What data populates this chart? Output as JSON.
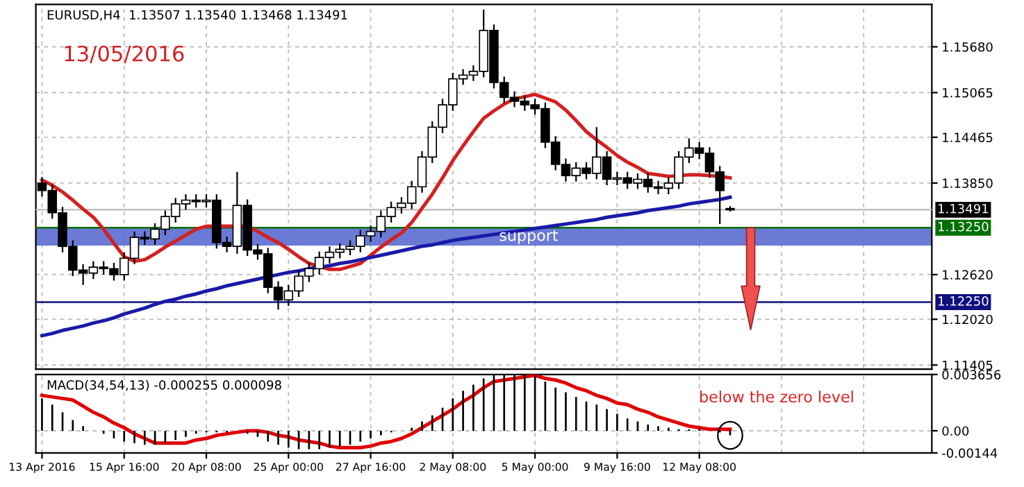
{
  "chart_data": [
    {
      "type": "candlestick",
      "title": "EURUSD,H4  1.13507 1.13540 1.13468 1.13491",
      "categories": [
        null,
        null,
        null,
        null,
        null,
        null,
        null,
        null,
        null,
        null,
        null,
        null,
        null,
        null,
        null,
        null,
        null,
        null,
        null,
        null,
        null,
        null,
        null,
        null,
        null,
        null,
        null,
        null,
        null,
        null,
        null,
        null,
        null,
        null,
        null,
        null,
        null,
        null,
        null,
        null,
        null,
        null,
        null,
        null,
        null,
        null,
        null,
        null,
        null,
        null,
        null,
        null,
        null,
        null,
        null,
        null,
        null,
        null,
        null,
        null,
        null,
        null,
        null,
        null,
        null,
        null,
        null,
        null
      ],
      "ohlc": [
        [
          1.1385,
          1.1393,
          1.1367,
          1.1375
        ],
        [
          1.1375,
          1.1383,
          1.1337,
          1.1345
        ],
        [
          1.1345,
          1.1353,
          1.1292,
          1.13
        ],
        [
          1.13,
          1.1308,
          1.126,
          1.1268
        ],
        [
          1.1268,
          1.1276,
          1.1248,
          1.1264
        ],
        [
          1.1264,
          1.128,
          1.1256,
          1.1272
        ],
        [
          1.1272,
          1.128,
          1.1262,
          1.127
        ],
        [
          1.127,
          1.1278,
          1.1254,
          1.1262
        ],
        [
          1.1262,
          1.1292,
          1.1254,
          1.1284
        ],
        [
          1.1284,
          1.132,
          1.1276,
          1.1312
        ],
        [
          1.1312,
          1.132,
          1.1302,
          1.131
        ],
        [
          1.131,
          1.1331,
          1.1302,
          1.1323
        ],
        [
          1.1323,
          1.1348,
          1.1315,
          1.134
        ],
        [
          1.134,
          1.1365,
          1.1332,
          1.1357
        ],
        [
          1.1357,
          1.137,
          1.1349,
          1.1362
        ],
        [
          1.1362,
          1.137,
          1.1352,
          1.136
        ],
        [
          1.136,
          1.137,
          1.1352,
          1.1362
        ],
        [
          1.1362,
          1.137,
          1.1297,
          1.1305
        ],
        [
          1.1305,
          1.1313,
          1.1292,
          1.13
        ],
        [
          1.13,
          1.14,
          1.129,
          1.1355
        ],
        [
          1.1355,
          1.1363,
          1.1287,
          1.1295
        ],
        [
          1.1295,
          1.1303,
          1.1282,
          1.129
        ],
        [
          1.129,
          1.1298,
          1.1237,
          1.1245
        ],
        [
          1.1245,
          1.1253,
          1.1215,
          1.1228
        ],
        [
          1.1228,
          1.1248,
          1.122,
          1.124
        ],
        [
          1.124,
          1.1268,
          1.1232,
          1.126
        ],
        [
          1.126,
          1.1278,
          1.1252,
          1.127
        ],
        [
          1.127,
          1.1293,
          1.1262,
          1.1285
        ],
        [
          1.1285,
          1.13,
          1.1277,
          1.1292
        ],
        [
          1.1292,
          1.1304,
          1.1284,
          1.1296
        ],
        [
          1.1296,
          1.1308,
          1.1288,
          1.13
        ],
        [
          1.13,
          1.1322,
          1.1292,
          1.1314
        ],
        [
          1.1314,
          1.1328,
          1.1306,
          1.132
        ],
        [
          1.132,
          1.1348,
          1.1312,
          1.134
        ],
        [
          1.134,
          1.136,
          1.1332,
          1.1352
        ],
        [
          1.1352,
          1.1366,
          1.1344,
          1.1358
        ],
        [
          1.1358,
          1.1388,
          1.135,
          1.138
        ],
        [
          1.138,
          1.1428,
          1.1372,
          1.142
        ],
        [
          1.142,
          1.1468,
          1.1412,
          1.146
        ],
        [
          1.146,
          1.1498,
          1.1452,
          1.149
        ],
        [
          1.149,
          1.1533,
          1.1482,
          1.1525
        ],
        [
          1.1525,
          1.1538,
          1.1517,
          1.153
        ],
        [
          1.153,
          1.1543,
          1.1522,
          1.1535
        ],
        [
          1.1535,
          1.1618,
          1.1527,
          1.159
        ],
        [
          1.159,
          1.1598,
          1.1512,
          1.152
        ],
        [
          1.152,
          1.1528,
          1.1492,
          1.15
        ],
        [
          1.15,
          1.1508,
          1.1487,
          1.1495
        ],
        [
          1.1495,
          1.1503,
          1.1482,
          1.149
        ],
        [
          1.149,
          1.1498,
          1.1477,
          1.1485
        ],
        [
          1.1485,
          1.1493,
          1.1432,
          1.144
        ],
        [
          1.144,
          1.1448,
          1.1402,
          1.141
        ],
        [
          1.141,
          1.1418,
          1.1387,
          1.1395
        ],
        [
          1.1395,
          1.1413,
          1.1387,
          1.1405
        ],
        [
          1.1405,
          1.1413,
          1.139,
          1.1398
        ],
        [
          1.1398,
          1.146,
          1.139,
          1.142
        ],
        [
          1.142,
          1.1428,
          1.1382,
          1.139
        ],
        [
          1.139,
          1.14,
          1.1382,
          1.1392
        ],
        [
          1.1392,
          1.14,
          1.1377,
          1.1385
        ],
        [
          1.1385,
          1.1398,
          1.1377,
          1.139
        ],
        [
          1.139,
          1.1398,
          1.1372,
          1.138
        ],
        [
          1.138,
          1.1388,
          1.137,
          1.1378
        ],
        [
          1.1378,
          1.1393,
          1.137,
          1.1385
        ],
        [
          1.1385,
          1.1428,
          1.1377,
          1.142
        ],
        [
          1.142,
          1.1445,
          1.1412,
          1.1432
        ],
        [
          1.1432,
          1.144,
          1.1417,
          1.1425
        ],
        [
          1.1425,
          1.1433,
          1.1392,
          1.14
        ],
        [
          1.14,
          1.1408,
          1.133,
          1.1375
        ],
        [
          1.13507,
          1.1354,
          1.13468,
          1.13491
        ]
      ],
      "series": [
        {
          "type": "line",
          "color": "#d42020",
          "values": [
            1.1389,
            1.1382,
            1.1373,
            1.1362,
            1.135,
            1.1339,
            1.1323,
            1.1304,
            1.1286,
            1.128,
            1.1282,
            1.129,
            1.1299,
            1.1307,
            1.1315,
            1.1323,
            1.1327,
            1.1327,
            1.1327,
            1.1327,
            1.1327,
            1.132,
            1.1312,
            1.1305,
            1.1296,
            1.1286,
            1.1277,
            1.1273,
            1.1269,
            1.1269,
            1.1273,
            1.1277,
            1.1288,
            1.1299,
            1.1309,
            1.1318,
            1.1332,
            1.1351,
            1.137,
            1.1392,
            1.1415,
            1.1435,
            1.1454,
            1.1472,
            1.1482,
            1.1491,
            1.1498,
            1.1501,
            1.1504,
            1.1499,
            1.1494,
            1.1483,
            1.1469,
            1.1454,
            1.1443,
            1.1433,
            1.1422,
            1.1413,
            1.1406,
            1.1398,
            1.1396,
            1.1394,
            1.1395,
            1.1396,
            1.1396,
            1.1395,
            1.1394,
            1.1392
          ]
        },
        {
          "type": "line",
          "color": "#1a1aa8",
          "values": [
            1.118,
            1.1183,
            1.1187,
            1.119,
            1.1193,
            1.1197,
            1.12,
            1.1204,
            1.1209,
            1.1213,
            1.1217,
            1.1222,
            1.1226,
            1.1229,
            1.1233,
            1.1236,
            1.124,
            1.1243,
            1.1247,
            1.125,
            1.1253,
            1.1256,
            1.1259,
            1.1262,
            1.1265,
            1.1267,
            1.127,
            1.1272,
            1.1274,
            1.1277,
            1.1279,
            1.1282,
            1.1285,
            1.1288,
            1.1291,
            1.1294,
            1.1297,
            1.13,
            1.1302,
            1.1305,
            1.1308,
            1.131,
            1.1312,
            1.1314,
            1.1316,
            1.1318,
            1.132,
            1.1322,
            1.1324,
            1.1326,
            1.1328,
            1.133,
            1.1332,
            1.1334,
            1.1336,
            1.1339,
            1.1341,
            1.1343,
            1.1345,
            1.1348,
            1.135,
            1.1352,
            1.1354,
            1.1357,
            1.1359,
            1.1361,
            1.1363,
            1.1366
          ]
        }
      ],
      "ylim": [
        1.1135,
        1.1625
      ],
      "yticks": [
        {
          "value": 1.1568,
          "label": "1.15680"
        },
        {
          "value": 1.15065,
          "label": "1.15065"
        },
        {
          "value": 1.14465,
          "label": "1.14465"
        },
        {
          "value": 1.1385,
          "label": "1.13850"
        },
        {
          "value": 1.1262,
          "label": "1.12620"
        },
        {
          "value": 1.1202,
          "label": "1.12020"
        },
        {
          "value": 1.11405,
          "label": "1.11405"
        }
      ],
      "ref_lines": [
        {
          "axis": "y",
          "value": 1.13491,
          "label": "1.13491",
          "color": "#c0c0c0"
        },
        {
          "axis": "y",
          "value": 1.1325,
          "label": "1.13250",
          "color": "#007000"
        },
        {
          "axis": "y",
          "value": 1.1225,
          "label": "1.12250",
          "color": "#101080"
        }
      ],
      "bands": [
        {
          "axis": "y",
          "from": 1.1301,
          "to": 1.1325,
          "label": "support",
          "color": "#5a6bd0"
        }
      ],
      "annotations": [
        "13/05/2016"
      ],
      "grid": true,
      "tick_labels": "y"
    },
    {
      "type": "bar",
      "title": "MACD(34,54,13) -0.000255 0.000098",
      "categories": [
        "13 Apr 2016",
        null,
        null,
        null,
        null,
        null,
        null,
        null,
        "15 Apr 16:00",
        null,
        null,
        null,
        null,
        null,
        null,
        null,
        "20 Apr 08:00",
        null,
        null,
        null,
        null,
        null,
        null,
        null,
        "25 Apr 00:00",
        null,
        null,
        null,
        null,
        null,
        null,
        null,
        "27 Apr 16:00",
        null,
        null,
        null,
        null,
        null,
        null,
        null,
        "2 May 08:00",
        null,
        null,
        null,
        null,
        null,
        null,
        null,
        "5 May 00:00",
        null,
        null,
        null,
        null,
        null,
        null,
        null,
        "9 May 16:00",
        null,
        null,
        null,
        null,
        null,
        null,
        null,
        "12 May 08:00",
        null,
        null,
        null
      ],
      "series": [
        {
          "type": "bar",
          "color": "#000000",
          "values": [
            0.0021,
            0.0017,
            0.0012,
            0.0007,
            0.0003,
            0.0,
            -0.0002,
            -0.0005,
            -0.0007,
            -0.0008,
            -0.0009,
            -0.0009,
            -0.0008,
            -0.0006,
            -0.0004,
            -0.0002,
            -0.0001,
            -0.0001,
            -0.0001,
            0.0,
            -0.0002,
            -0.0004,
            -0.0007,
            -0.0009,
            -0.0011,
            -0.0012,
            -0.0012,
            -0.0012,
            -0.0011,
            -0.001,
            -0.0009,
            -0.0007,
            -0.0005,
            -0.0003,
            -0.0001,
            0.0,
            0.0002,
            0.0006,
            0.001,
            0.0015,
            0.0021,
            0.0026,
            0.003,
            0.0034,
            0.0036,
            0.0036,
            0.0036,
            0.0036,
            0.0036,
            0.0032,
            0.0028,
            0.0025,
            0.0022,
            0.0019,
            0.0017,
            0.0014,
            0.0011,
            0.0008,
            0.0006,
            0.0004,
            0.0003,
            0.0002,
            0.0001,
            0.0001,
            0.0001,
            0.0,
            -0.0001,
            -0.0003
          ]
        },
        {
          "type": "line",
          "color": "#e00000",
          "values": [
            0.0023,
            0.0022,
            0.0021,
            0.002,
            0.0016,
            0.0012,
            0.0009,
            0.0005,
            0.0002,
            -0.0002,
            -0.0005,
            -0.0008,
            -0.0008,
            -0.0008,
            -0.0008,
            -0.0006,
            -0.0005,
            -0.0003,
            -0.0002,
            -0.0001,
            0.0,
            0.0,
            -0.0001,
            -0.0003,
            -0.0004,
            -0.0006,
            -0.0007,
            -0.0008,
            -0.001,
            -0.0011,
            -0.0011,
            -0.0011,
            -0.001,
            -0.0008,
            -0.0007,
            -0.0005,
            -0.0002,
            0.0002,
            0.0006,
            0.001,
            0.0014,
            0.0019,
            0.0023,
            0.0028,
            0.0032,
            0.0033,
            0.0034,
            0.0035,
            0.0036,
            0.0034,
            0.0033,
            0.0031,
            0.0028,
            0.0026,
            0.0023,
            0.0021,
            0.0018,
            0.0017,
            0.0014,
            0.0012,
            0.0009,
            0.0007,
            0.0005,
            0.0003,
            0.0002,
            0.0001,
            0.0001,
            0.0001
          ]
        }
      ],
      "ylim": [
        -0.00144,
        0.003656
      ],
      "yticks": [
        {
          "value": 0.003656,
          "label": "0.003656"
        },
        {
          "value": 0,
          "label": "0.00"
        },
        {
          "value": -0.00144,
          "label": "-0.00144"
        }
      ],
      "annotations": [
        "below the zero level"
      ],
      "grid": true
    }
  ]
}
